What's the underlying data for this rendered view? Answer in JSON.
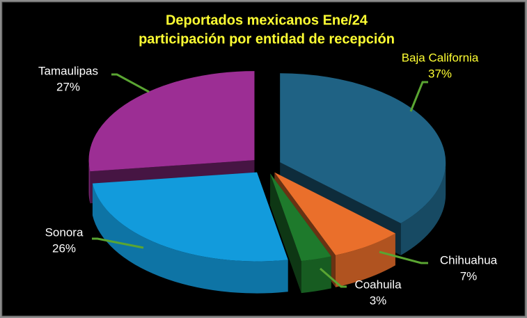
{
  "chart_data": {
    "type": "pie3d",
    "title": "Deportados mexicanos Ene/24",
    "subtitle": "participación por entidad de recepción",
    "categories": [
      "Baja California",
      "Chihuahua",
      "Coahuila",
      "Sonora",
      "Tamaulipas"
    ],
    "values": [
      37,
      7,
      3,
      26,
      27
    ],
    "value_labels": [
      "37%",
      "7%",
      "3%",
      "26%",
      "27%"
    ],
    "colors": [
      "#1f6284",
      "#ea6f2b",
      "#1e7a2c",
      "#129bdc",
      "#9c2e94"
    ],
    "label_colors": [
      "#ffff33",
      "#ffffff",
      "#ffffff",
      "#ffffff",
      "#ffffff"
    ]
  }
}
